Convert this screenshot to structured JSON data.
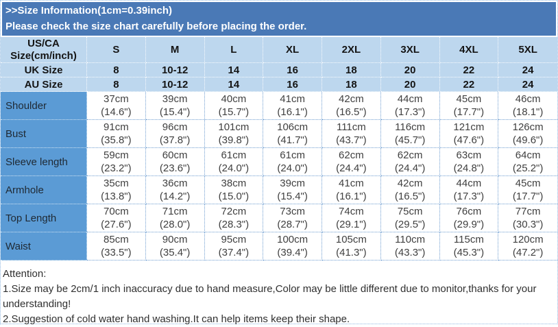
{
  "banner": {
    "title": ">>Size Information(1cm=0.39inch)",
    "subtitle": "Please check the size chart carefully before placing the order."
  },
  "size_chart": {
    "corner_header": [
      "US/CA",
      "Size(cm/inch)"
    ],
    "size_columns": [
      "S",
      "M",
      "L",
      "XL",
      "2XL",
      "3XL",
      "4XL",
      "5XL"
    ],
    "region_rows": [
      {
        "label": "UK Size",
        "values": [
          "8",
          "10-12",
          "14",
          "16",
          "18",
          "20",
          "22",
          "24"
        ]
      },
      {
        "label": "AU Size",
        "values": [
          "8",
          "10-12",
          "14",
          "16",
          "18",
          "20",
          "22",
          "24"
        ]
      }
    ],
    "measurement_rows": [
      {
        "label": "Shoulder",
        "cells": [
          {
            "cm": "37cm",
            "inch": "(14.6\")"
          },
          {
            "cm": "39cm",
            "inch": "(15.4\")"
          },
          {
            "cm": "40cm",
            "inch": "(15.7\")"
          },
          {
            "cm": "41cm",
            "inch": "(16.1\")"
          },
          {
            "cm": "42cm",
            "inch": "(16.5\")"
          },
          {
            "cm": "44cm",
            "inch": "(17.3\")"
          },
          {
            "cm": "45cm",
            "inch": "(17.7\")"
          },
          {
            "cm": "46cm",
            "inch": "(18.1\")"
          }
        ]
      },
      {
        "label": "Bust",
        "cells": [
          {
            "cm": "91cm",
            "inch": "(35.8\")"
          },
          {
            "cm": "96cm",
            "inch": "(37.8\")"
          },
          {
            "cm": "101cm",
            "inch": "(39.8\")"
          },
          {
            "cm": "106cm",
            "inch": "(41.7\")"
          },
          {
            "cm": "111cm",
            "inch": "(43.7\")"
          },
          {
            "cm": "116cm",
            "inch": "(45.7\")"
          },
          {
            "cm": "121cm",
            "inch": "(47.6\")"
          },
          {
            "cm": "126cm",
            "inch": "(49.6\")"
          }
        ]
      },
      {
        "label": "Sleeve length",
        "cells": [
          {
            "cm": "59cm",
            "inch": "(23.2\")"
          },
          {
            "cm": "60cm",
            "inch": "(23.6\")"
          },
          {
            "cm": "61cm",
            "inch": "(24.0\")"
          },
          {
            "cm": "61cm",
            "inch": "(24.0\")"
          },
          {
            "cm": "62cm",
            "inch": "(24.4\")"
          },
          {
            "cm": "62cm",
            "inch": "(24.4\")"
          },
          {
            "cm": "63cm",
            "inch": "(24.8\")"
          },
          {
            "cm": "64cm",
            "inch": "(25.2\")"
          }
        ]
      },
      {
        "label": "Armhole",
        "cells": [
          {
            "cm": "35cm",
            "inch": "(13.8\")"
          },
          {
            "cm": "36cm",
            "inch": "(14.2\")"
          },
          {
            "cm": "38cm",
            "inch": "(15.0\")"
          },
          {
            "cm": "39cm",
            "inch": "(15.4\")"
          },
          {
            "cm": "41cm",
            "inch": "(16.1\")"
          },
          {
            "cm": "42cm",
            "inch": "(16.5\")"
          },
          {
            "cm": "44cm",
            "inch": "(17.3\")"
          },
          {
            "cm": "45cm",
            "inch": "(17.7\")"
          }
        ]
      },
      {
        "label": "Top Length",
        "cells": [
          {
            "cm": "70cm",
            "inch": "(27.6\")"
          },
          {
            "cm": "71cm",
            "inch": "(28.0\")"
          },
          {
            "cm": "72cm",
            "inch": "(28.3\")"
          },
          {
            "cm": "73cm",
            "inch": "(28.7\")"
          },
          {
            "cm": "74cm",
            "inch": "(29.1\")"
          },
          {
            "cm": "75cm",
            "inch": "(29.5\")"
          },
          {
            "cm": "76cm",
            "inch": "(29.9\")"
          },
          {
            "cm": "77cm",
            "inch": "(30.3\")"
          }
        ]
      },
      {
        "label": "Waist",
        "cells": [
          {
            "cm": "85cm",
            "inch": "(33.5\")"
          },
          {
            "cm": "90cm",
            "inch": "(35.4\")"
          },
          {
            "cm": "95cm",
            "inch": "(37.4\")"
          },
          {
            "cm": "100cm",
            "inch": "(39.4\")"
          },
          {
            "cm": "105cm",
            "inch": "(41.3\")"
          },
          {
            "cm": "110cm",
            "inch": "(43.3\")"
          },
          {
            "cm": "115cm",
            "inch": "(45.3\")"
          },
          {
            "cm": "120cm",
            "inch": "(47.2\")"
          }
        ]
      }
    ]
  },
  "attention": {
    "title": "Attention:",
    "notes": [
      "1.Size may be 2cm/1 inch inaccuracy due to hand measure,Color may be little different due to monitor,thanks for your understanding!",
      "2.Suggestion of cold water hand washing.It can help items keep their shape."
    ]
  },
  "colors": {
    "banner_bg": "#4A79B6",
    "label_bg": "#5B9BD5",
    "header_bg": "#BDD7EE",
    "grid_border": "#6D9CD0",
    "data_text": "#3F3F3F"
  }
}
